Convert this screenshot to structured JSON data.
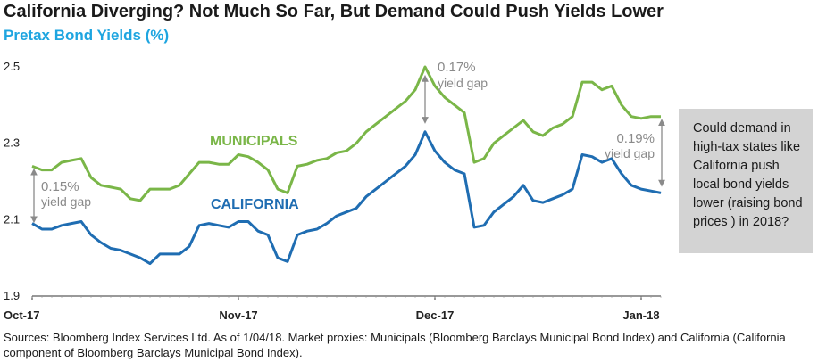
{
  "chart_data": {
    "type": "line",
    "title": "California Diverging? Not Much So Far, But Demand Could Push Yields Lower",
    "subtitle": "Pretax Bond Yields (%)",
    "ylim": [
      1.9,
      2.5
    ],
    "yticks": [
      "1.9",
      "2.1",
      "2.3",
      "2.5"
    ],
    "xtick_labels": [
      "Oct-17",
      "Nov-17",
      "Dec-17",
      "Jan-18"
    ],
    "x_index_range": [
      0,
      64
    ],
    "xtick_positions": [
      0,
      21,
      41,
      62
    ],
    "series": [
      {
        "name": "MUNICIPALS",
        "color": "#7ab648",
        "values": [
          2.24,
          2.23,
          2.23,
          2.25,
          2.255,
          2.26,
          2.21,
          2.19,
          2.185,
          2.18,
          2.155,
          2.15,
          2.18,
          2.18,
          2.18,
          2.19,
          2.22,
          2.25,
          2.25,
          2.245,
          2.245,
          2.27,
          2.265,
          2.25,
          2.23,
          2.18,
          2.17,
          2.24,
          2.245,
          2.255,
          2.26,
          2.275,
          2.28,
          2.3,
          2.33,
          2.35,
          2.37,
          2.39,
          2.41,
          2.44,
          2.5,
          2.45,
          2.42,
          2.4,
          2.38,
          2.25,
          2.26,
          2.3,
          2.32,
          2.34,
          2.36,
          2.33,
          2.32,
          2.34,
          2.35,
          2.37,
          2.46,
          2.46,
          2.44,
          2.45,
          2.4,
          2.37,
          2.365,
          2.37,
          2.37
        ]
      },
      {
        "name": "CALIFORNIA",
        "color": "#1f6db2",
        "values": [
          2.09,
          2.075,
          2.075,
          2.085,
          2.09,
          2.095,
          2.06,
          2.04,
          2.025,
          2.02,
          2.01,
          2.0,
          1.985,
          2.01,
          2.01,
          2.01,
          2.03,
          2.085,
          2.09,
          2.085,
          2.08,
          2.095,
          2.095,
          2.07,
          2.06,
          2.0,
          1.99,
          2.06,
          2.07,
          2.075,
          2.09,
          2.11,
          2.12,
          2.13,
          2.16,
          2.18,
          2.2,
          2.22,
          2.24,
          2.27,
          2.33,
          2.28,
          2.25,
          2.23,
          2.22,
          2.08,
          2.085,
          2.12,
          2.14,
          2.16,
          2.19,
          2.15,
          2.145,
          2.155,
          2.165,
          2.18,
          2.27,
          2.265,
          2.25,
          2.26,
          2.22,
          2.19,
          2.18,
          2.175,
          2.17
        ]
      }
    ],
    "annotations": [
      {
        "text_value": "0.15%",
        "text_sub": "yield gap"
      },
      {
        "text_value": "0.17%",
        "text_sub": "yield gap"
      },
      {
        "text_value": "0.19%",
        "text_sub": "yield gap"
      }
    ],
    "callout": "Could demand in high-tax states like California push local bond yields lower (raising bond prices ) in 2018?",
    "callout_lines": [
      "Could demand in",
      "high-tax states like",
      "California push",
      "local bond yields",
      "lower (raising bond",
      "prices ) in 2018?"
    ],
    "source": "Sources: Bloomberg Index Services Ltd. As of 1/04/18. Market proxies: Municipals (Bloomberg Barclays Municipal Bond Index) and California (California component of Bloomberg Barclays Municipal Bond Index)."
  }
}
